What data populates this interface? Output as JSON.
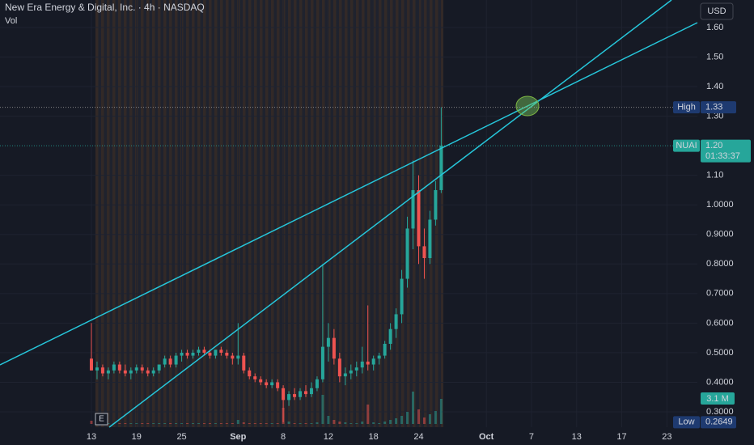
{
  "chart_data": {
    "type": "candlestick",
    "title": "New Era Energy & Digital, Inc. · 4h · NASDAQ",
    "indicator": "Vol",
    "currency": "USD",
    "event": "E",
    "up_color": "#26a69a",
    "down_color": "#ef5350",
    "grid": true,
    "x": [
      0,
      0.5,
      1,
      1.5,
      2,
      2.5,
      3,
      3.5,
      4,
      4.5,
      5,
      5.5,
      6,
      6.5,
      7,
      7.5,
      8,
      8.5,
      9,
      9.5,
      10,
      10.5,
      11,
      11.5,
      12,
      12.5,
      13,
      13.5,
      14,
      14.5,
      15,
      15.5,
      16,
      16.5,
      17,
      17.5,
      18,
      18.5,
      19,
      19.5,
      20,
      20.5,
      21,
      21.5,
      22,
      22.5,
      23,
      23.5,
      24,
      24.5,
      25,
      25.5,
      26,
      26.5,
      27,
      27.5,
      28,
      28.5,
      29,
      29.5,
      30,
      30.5,
      31
    ],
    "open": [
      0.48,
      0.44,
      0.45,
      0.43,
      0.44,
      0.46,
      0.44,
      0.43,
      0.44,
      0.45,
      0.44,
      0.43,
      0.44,
      0.46,
      0.48,
      0.46,
      0.49,
      0.5,
      0.49,
      0.5,
      0.51,
      0.5,
      0.49,
      0.51,
      0.5,
      0.49,
      0.48,
      0.49,
      0.44,
      0.42,
      0.41,
      0.4,
      0.39,
      0.4,
      0.38,
      0.34,
      0.36,
      0.35,
      0.37,
      0.36,
      0.38,
      0.41,
      0.52,
      0.55,
      0.48,
      0.42,
      0.43,
      0.44,
      0.45,
      0.47,
      0.46,
      0.48,
      0.49,
      0.53,
      0.58,
      0.63,
      0.75,
      0.92,
      1.05,
      0.86,
      0.82,
      0.95,
      1.05
    ],
    "high": [
      0.6,
      0.47,
      0.46,
      0.45,
      0.47,
      0.47,
      0.46,
      0.45,
      0.46,
      0.46,
      0.45,
      0.45,
      0.46,
      0.49,
      0.49,
      0.5,
      0.51,
      0.51,
      0.51,
      0.52,
      0.52,
      0.51,
      0.51,
      0.52,
      0.51,
      0.5,
      0.6,
      0.5,
      0.45,
      0.43,
      0.42,
      0.41,
      0.41,
      0.41,
      0.39,
      0.37,
      0.38,
      0.38,
      0.39,
      0.4,
      0.42,
      0.8,
      0.6,
      0.58,
      0.5,
      0.45,
      0.46,
      0.47,
      0.52,
      0.66,
      0.49,
      0.5,
      0.54,
      0.6,
      0.65,
      0.78,
      0.96,
      1.15,
      1.1,
      0.92,
      0.98,
      1.08,
      1.33
    ],
    "low": [
      0.44,
      0.41,
      0.42,
      0.41,
      0.43,
      0.43,
      0.42,
      0.41,
      0.43,
      0.43,
      0.42,
      0.42,
      0.43,
      0.45,
      0.45,
      0.45,
      0.47,
      0.48,
      0.48,
      0.49,
      0.49,
      0.48,
      0.48,
      0.49,
      0.48,
      0.46,
      0.46,
      0.43,
      0.41,
      0.4,
      0.39,
      0.38,
      0.38,
      0.37,
      0.2649,
      0.32,
      0.34,
      0.34,
      0.35,
      0.35,
      0.37,
      0.4,
      0.47,
      0.46,
      0.4,
      0.39,
      0.41,
      0.42,
      0.43,
      0.44,
      0.44,
      0.46,
      0.48,
      0.51,
      0.55,
      0.6,
      0.72,
      0.85,
      0.8,
      0.75,
      0.8,
      0.93,
      1.04
    ],
    "close": [
      0.44,
      0.45,
      0.43,
      0.44,
      0.46,
      0.44,
      0.43,
      0.44,
      0.45,
      0.44,
      0.43,
      0.44,
      0.46,
      0.48,
      0.46,
      0.49,
      0.5,
      0.49,
      0.5,
      0.51,
      0.5,
      0.49,
      0.51,
      0.5,
      0.49,
      0.48,
      0.49,
      0.44,
      0.42,
      0.41,
      0.4,
      0.39,
      0.4,
      0.38,
      0.34,
      0.36,
      0.35,
      0.37,
      0.36,
      0.38,
      0.41,
      0.52,
      0.55,
      0.48,
      0.42,
      0.43,
      0.44,
      0.45,
      0.47,
      0.46,
      0.48,
      0.49,
      0.53,
      0.58,
      0.63,
      0.75,
      0.92,
      1.05,
      0.86,
      0.82,
      0.95,
      1.05,
      1.2
    ],
    "volume": [
      0.4,
      0.1,
      0.1,
      0.1,
      0.1,
      0.1,
      0.1,
      0.1,
      0.1,
      0.1,
      0.1,
      0.1,
      0.1,
      0.1,
      0.1,
      0.1,
      0.1,
      0.1,
      0.1,
      0.1,
      0.1,
      0.1,
      0.1,
      0.1,
      0.1,
      0.1,
      0.5,
      0.2,
      0.1,
      0.1,
      0.1,
      0.1,
      0.1,
      0.1,
      2.0,
      0.3,
      0.1,
      0.1,
      0.1,
      0.1,
      0.2,
      3.6,
      1.0,
      0.5,
      0.3,
      0.2,
      0.1,
      0.1,
      0.3,
      2.4,
      0.2,
      0.1,
      0.3,
      0.5,
      0.7,
      1.0,
      1.5,
      4.0,
      1.8,
      0.8,
      1.2,
      1.6,
      3.1
    ],
    "volume_ylim": [
      0,
      5.5
    ],
    "volume_last": {
      "value": 3.1,
      "label": "3.1 M"
    },
    "xlim": [
      -8.1,
      53.7
    ],
    "xticks": [
      {
        "value": 0,
        "label": "13"
      },
      {
        "value": 4,
        "label": "19"
      },
      {
        "value": 8,
        "label": "25"
      },
      {
        "value": 13,
        "label": "Sep"
      },
      {
        "value": 17,
        "label": "8"
      },
      {
        "value": 21,
        "label": "12"
      },
      {
        "value": 25,
        "label": "18"
      },
      {
        "value": 29,
        "label": "24"
      },
      {
        "value": 35,
        "label": "Oct"
      },
      {
        "value": 39,
        "label": "7"
      },
      {
        "value": 43,
        "label": "13"
      },
      {
        "value": 47,
        "label": "17"
      },
      {
        "value": 51,
        "label": "23"
      }
    ],
    "ylim": [
      0.248,
      1.693
    ],
    "yticks": [
      {
        "value": 0.3,
        "label": "0.3000"
      },
      {
        "value": 0.4,
        "label": "0.4000"
      },
      {
        "value": 0.5,
        "label": "0.5000"
      },
      {
        "value": 0.6,
        "label": "0.6000"
      },
      {
        "value": 0.7,
        "label": "0.7000"
      },
      {
        "value": 0.8,
        "label": "0.8000"
      },
      {
        "value": 0.9,
        "label": "0.9000"
      },
      {
        "value": 1,
        "label": "1.0000"
      },
      {
        "value": 1.1,
        "label": "1.10"
      },
      {
        "value": 1.3,
        "label": "1.30"
      },
      {
        "value": 1.4,
        "label": "1.40"
      },
      {
        "value": 1.5,
        "label": "1.50"
      },
      {
        "value": 1.6,
        "label": "1.60"
      }
    ],
    "price_markers": [
      {
        "name": "High",
        "value": 1.33
      },
      {
        "name": "NUAI",
        "value": 1.2,
        "value_label": "1.20",
        "countdown": "01:33:37"
      },
      {
        "name": "Low",
        "value": 0.2649
      }
    ]
  }
}
